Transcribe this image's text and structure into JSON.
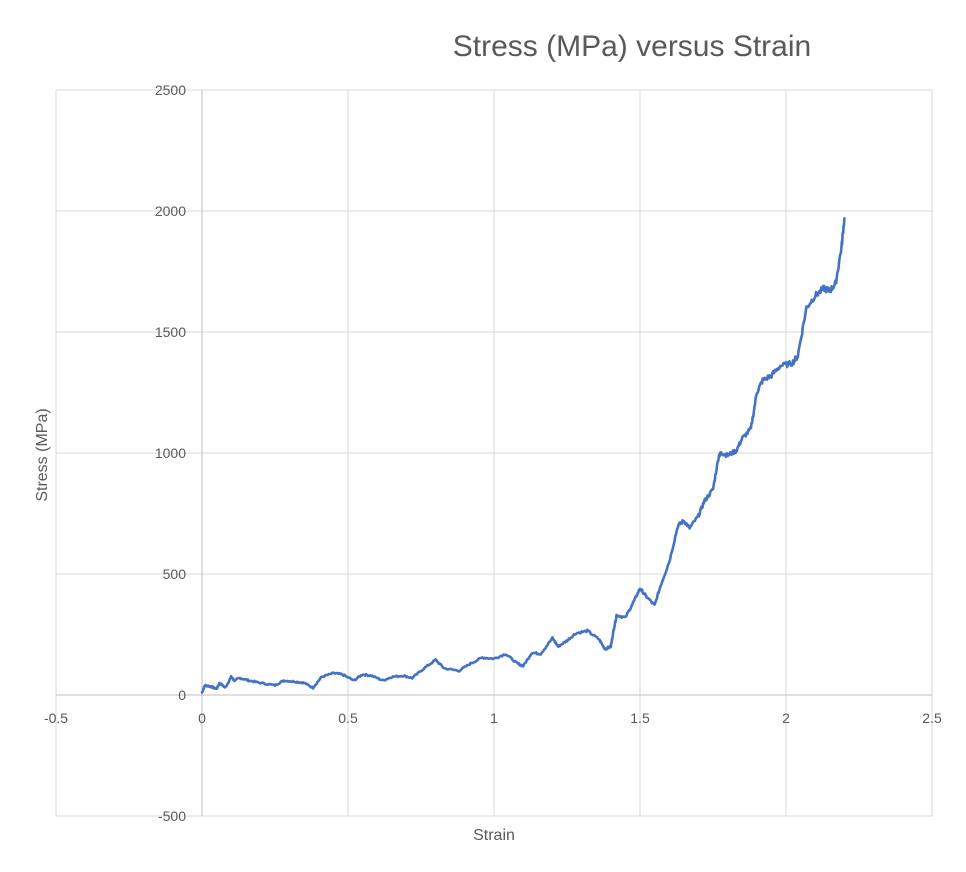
{
  "chart_data": {
    "type": "line",
    "title": "Stress (MPa) versus Strain",
    "xlabel": "Strain",
    "ylabel": "Stress (MPa)",
    "xlim": [
      -0.5,
      2.5
    ],
    "ylim": [
      -500,
      2500
    ],
    "xticks": [
      -0.5,
      0,
      0.5,
      1,
      1.5,
      2,
      2.5
    ],
    "xtick_labels": [
      "-0.5",
      "0",
      "0.5",
      "1",
      "1.5",
      "2",
      "2.5"
    ],
    "yticks": [
      -500,
      0,
      500,
      1000,
      1500,
      2000,
      2500
    ],
    "ytick_labels": [
      "-500",
      "0",
      "500",
      "1000",
      "1500",
      "2000",
      "2500"
    ],
    "grid": true,
    "legend": "none",
    "series": [
      {
        "name": "Stress (MPa)",
        "color": "#4472c4",
        "x": [
          0,
          0.01,
          0.03,
          0.05,
          0.06,
          0.08,
          0.1,
          0.11,
          0.13,
          0.16,
          0.2,
          0.25,
          0.28,
          0.32,
          0.35,
          0.38,
          0.41,
          0.45,
          0.48,
          0.52,
          0.55,
          0.58,
          0.62,
          0.65,
          0.69,
          0.72,
          0.76,
          0.8,
          0.83,
          0.88,
          0.92,
          0.96,
          1,
          1.04,
          1.08,
          1.1,
          1.13,
          1.16,
          1.2,
          1.22,
          1.25,
          1.28,
          1.32,
          1.36,
          1.38,
          1.4,
          1.41,
          1.42,
          1.45,
          1.48,
          1.5,
          1.52,
          1.55,
          1.57,
          1.6,
          1.63,
          1.65,
          1.67,
          1.7,
          1.72,
          1.75,
          1.77,
          1.78,
          1.8,
          1.83,
          1.85,
          1.88,
          1.9,
          1.92,
          1.95,
          1.98,
          2.02,
          2.04,
          2.07,
          2.1,
          2.13,
          2.15,
          2.17,
          2.19,
          2.2
        ],
        "values": [
          10,
          40,
          35,
          25,
          50,
          30,
          75,
          60,
          70,
          60,
          50,
          40,
          60,
          55,
          50,
          30,
          75,
          90,
          85,
          60,
          85,
          80,
          60,
          75,
          80,
          70,
          110,
          145,
          110,
          100,
          130,
          155,
          150,
          170,
          130,
          120,
          175,
          170,
          235,
          200,
          225,
          255,
          265,
          230,
          190,
          200,
          270,
          330,
          320,
          390,
          440,
          410,
          370,
          450,
          550,
          700,
          720,
          690,
          740,
          800,
          850,
          990,
          1000,
          990,
          1010,
          1060,
          1100,
          1250,
          1300,
          1320,
          1360,
          1370,
          1400,
          1600,
          1650,
          1680,
          1670,
          1700,
          1850,
          1970
        ]
      }
    ]
  }
}
